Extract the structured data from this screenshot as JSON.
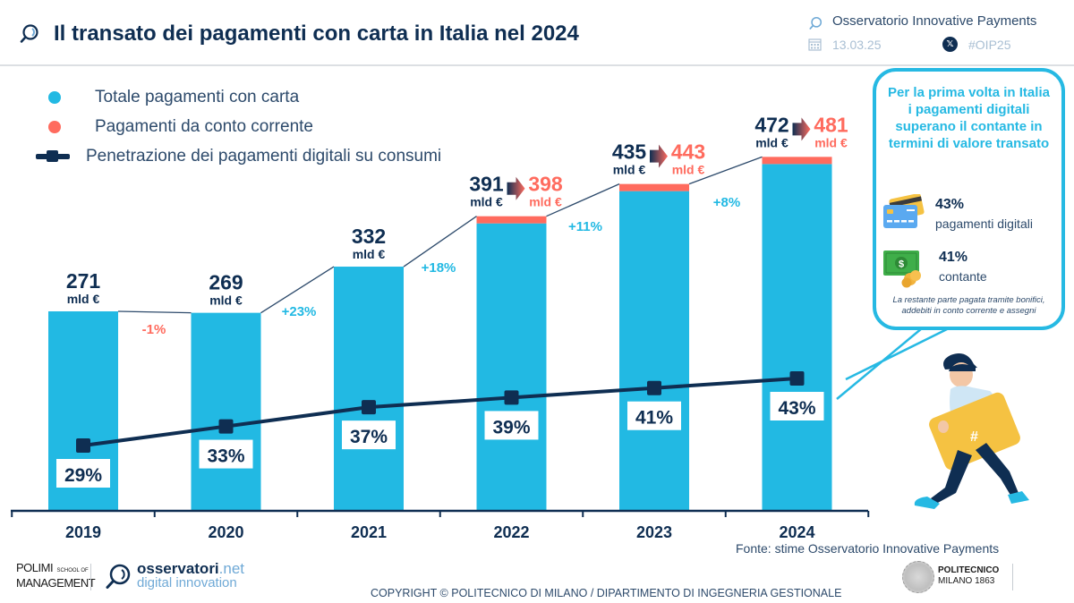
{
  "header": {
    "title": "Il transato dei pagamenti con carta in Italia nel 2024",
    "organization": "Osservatorio Innovative Payments",
    "date": "13.03.25",
    "hashtag": "#OIP25",
    "icons": {
      "title": "magnifier-logo-icon",
      "org": "magnifier-logo-icon",
      "date": "calendar-icon",
      "social": "x-logo-icon"
    }
  },
  "legend": [
    {
      "label": "Totale pagamenti con carta",
      "color": "#22b9e3",
      "marker": "dot"
    },
    {
      "label": "Pagamenti da conto corrente",
      "color": "#ff6b5e",
      "marker": "dot"
    },
    {
      "label": "Penetrazione dei pagamenti digitali su consumi",
      "color": "#0f2e52",
      "marker": "line-square"
    }
  ],
  "chart_data": {
    "type": "bar",
    "title": "Il transato dei pagamenti con carta in Italia nel 2024",
    "categories": [
      "2019",
      "2020",
      "2021",
      "2022",
      "2023",
      "2024"
    ],
    "unit_label": "mld €",
    "series": [
      {
        "name": "Totale pagamenti con carta",
        "values": [
          271,
          269,
          332,
          391,
          435,
          472
        ],
        "color": "#22b9e3",
        "kind": "bar"
      },
      {
        "name": "Pagamenti da conto corrente",
        "values": [
          0,
          0,
          0,
          7,
          8,
          9
        ],
        "color": "#ff6b5e",
        "kind": "stacked-bar"
      },
      {
        "name": "Penetrazione dei pagamenti digitali su consumi",
        "values": [
          29,
          33,
          37,
          39,
          41,
          43
        ],
        "unit": "%",
        "color": "#0f2e52",
        "kind": "line"
      }
    ],
    "totals_with_account": [
      null,
      null,
      null,
      398,
      443,
      481
    ],
    "bar_labels": [
      "271",
      "269",
      "332",
      "391",
      "435",
      "472"
    ],
    "total_labels": [
      null,
      null,
      null,
      "398",
      "443",
      "481"
    ],
    "line_labels": [
      "29%",
      "33%",
      "37%",
      "39%",
      "41%",
      "43%"
    ],
    "growth_labels": [
      {
        "between": [
          "2019",
          "2020"
        ],
        "label": "-1%",
        "color": "#ff6b5e"
      },
      {
        "between": [
          "2020",
          "2021"
        ],
        "label": "+23%",
        "color": "#22b9e3"
      },
      {
        "between": [
          "2021",
          "2022"
        ],
        "label": "+18%",
        "color": "#22b9e3"
      },
      {
        "between": [
          "2022",
          "2023"
        ],
        "label": "+11%",
        "color": "#22b9e3"
      },
      {
        "between": [
          "2023",
          "2024"
        ],
        "label": "+8%",
        "color": "#22b9e3"
      }
    ],
    "ylim_bars": [
      0,
      520
    ],
    "ylim_line": [
      0,
      100
    ],
    "grid": false,
    "legend_position": "top-left",
    "source": "Fonte: stime Osservatorio Innovative Payments"
  },
  "callout": {
    "title": "Per la prima volta in Italia i pagamenti digitali superano il contante in termini di valore transato",
    "stats": [
      {
        "value": "43%",
        "label": "pagamenti digitali",
        "icon": "credit-card-icon"
      },
      {
        "value": "41%",
        "label": "contante",
        "icon": "cash-icon"
      }
    ],
    "note": "La restante parte pagata tramite bonifici, addebiti in conto corrente e assegni"
  },
  "footer": {
    "source": "Fonte: stime Osservatorio Innovative Payments",
    "polimi_line1": "POLIMI",
    "polimi_small": "SCHOOL OF",
    "polimi_line2": "MANAGEMENT",
    "osservatori_name": "osservatori",
    "osservatori_tld": ".net",
    "osservatori_sub": "digital innovation",
    "copyright": "COPYRIGHT © POLITECNICO DI MILANO / DIPARTIMENTO DI INGEGNERIA GESTIONALE",
    "politecnico_name": "POLITECNICO",
    "politecnico_sub": "MILANO 1863"
  },
  "colors": {
    "bar": "#22b9e3",
    "account": "#ff6b5e",
    "line": "#0f2e52",
    "text_dark": "#0f2e52",
    "growth_positive": "#22b9e3",
    "growth_negative": "#ff6b5e"
  }
}
